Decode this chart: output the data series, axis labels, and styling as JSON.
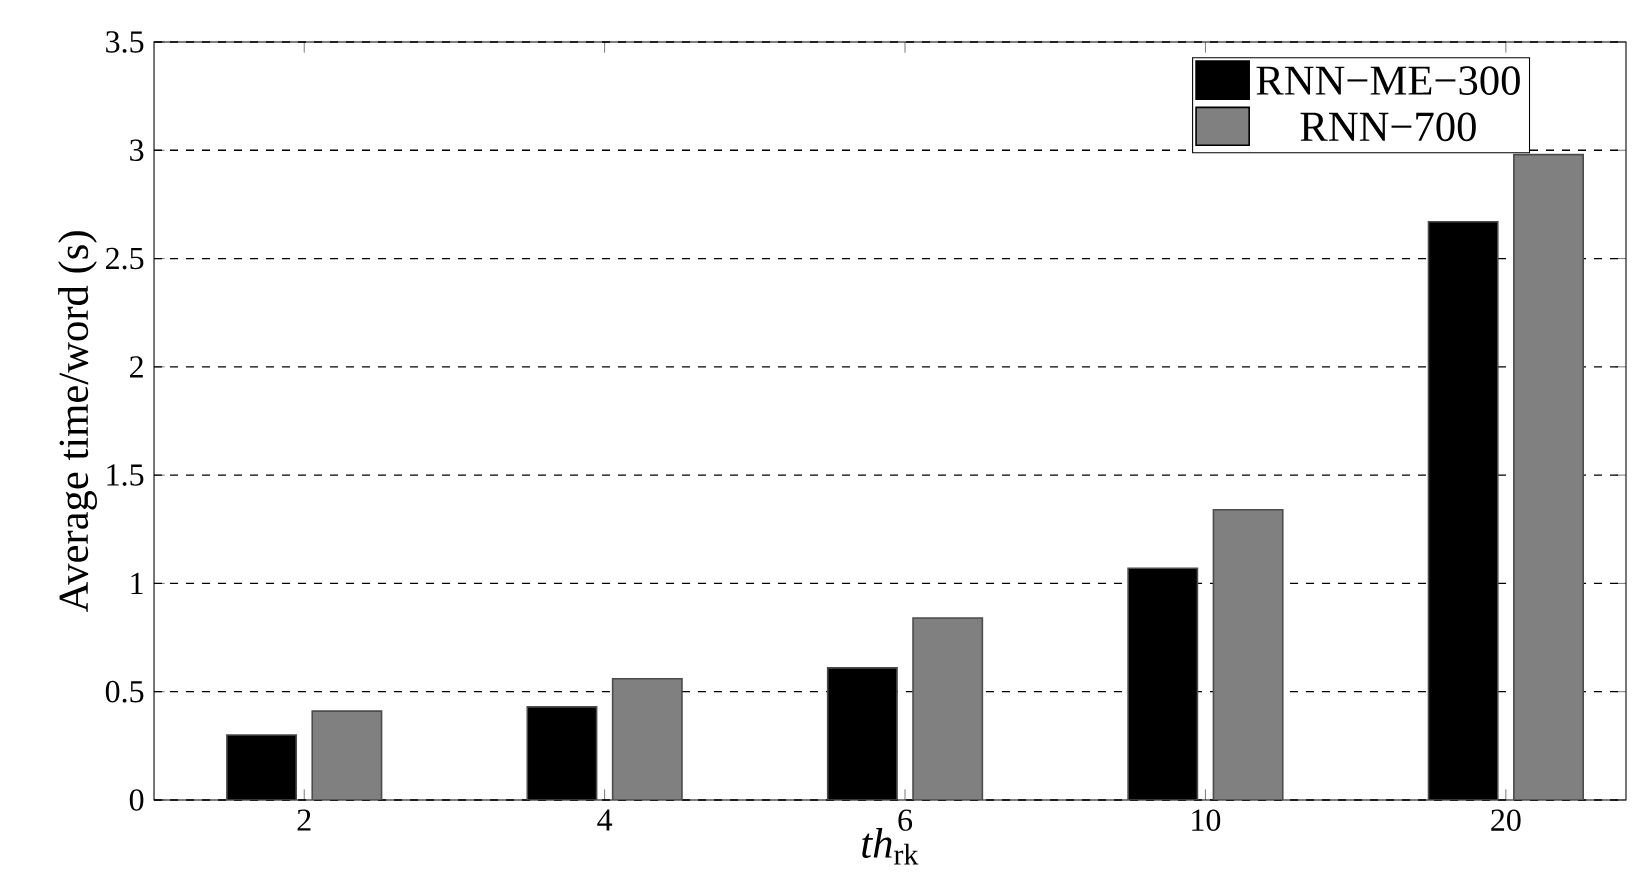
{
  "chart_data": {
    "type": "bar",
    "xlabel": "*th*$_{rk}$",
    "ylabel": "Average time/word (s)",
    "categories": [
      "2",
      "4",
      "6",
      "10",
      "20"
    ],
    "series": [
      {
        "name": "RNN−ME−300",
        "color": "#000000",
        "values": [
          0.3,
          0.43,
          0.61,
          1.07,
          2.67
        ]
      },
      {
        "name": "RNN−700",
        "color": "#808080",
        "values": [
          0.41,
          0.56,
          0.84,
          1.34,
          2.98
        ]
      }
    ],
    "ylim": [
      0,
      3.5
    ],
    "yticks": [
      0,
      0.5,
      1,
      1.5,
      2,
      2.5,
      3,
      3.5
    ],
    "grid": "y",
    "legend": "top right"
  }
}
